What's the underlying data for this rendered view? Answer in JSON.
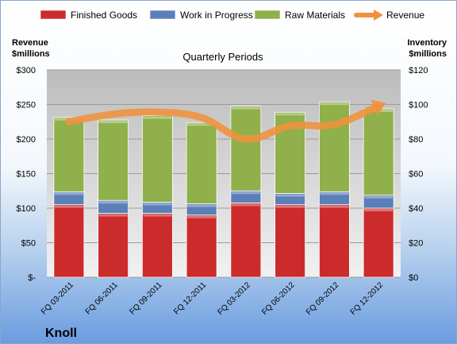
{
  "chart_data": {
    "type": "bar",
    "stacked": true,
    "subtitle": "Quarterly Periods",
    "company": "Knoll",
    "left_axis_title": [
      "Revenue",
      "$millions"
    ],
    "right_axis_title": [
      "Inventory",
      "$millions"
    ],
    "categories": [
      "FQ 03-2011",
      "FQ 06-2011",
      "FQ 09-2011",
      "FQ 12-2011",
      "FQ 03-2012",
      "FQ 06-2012",
      "FQ 09-2012",
      "FQ 12-2012"
    ],
    "left_axis": {
      "min": 0,
      "max": 300,
      "step": 50,
      "ticks": [
        "$-",
        "$50",
        "$100",
        "$150",
        "$200",
        "$250",
        "$300"
      ]
    },
    "right_axis": {
      "min": 0,
      "max": 120,
      "step": 20,
      "ticks": [
        "$0",
        "$20",
        "$40",
        "$60",
        "$80",
        "$100",
        "$120"
      ]
    },
    "series": [
      {
        "name": "Finished Goods",
        "axis": "right",
        "color": "#cc2b2b",
        "values": [
          42,
          37,
          37,
          36,
          43,
          42,
          42,
          40
        ]
      },
      {
        "name": "Work in Progress",
        "axis": "right",
        "color": "#5b7fb8",
        "values": [
          7.5,
          7.5,
          6.5,
          6.5,
          7,
          6.5,
          7.5,
          7.5
        ]
      },
      {
        "name": "Raw Materials",
        "axis": "right",
        "color": "#8fb04a",
        "values": [
          43,
          46.5,
          50,
          47,
          49,
          47,
          52,
          50
        ]
      },
      {
        "name": "Revenue",
        "axis": "left",
        "type": "line",
        "color": "#f0913c",
        "values": [
          225,
          236,
          239,
          231,
          200,
          219,
          221,
          248
        ]
      }
    ],
    "legend_position": "top",
    "grid": true
  }
}
